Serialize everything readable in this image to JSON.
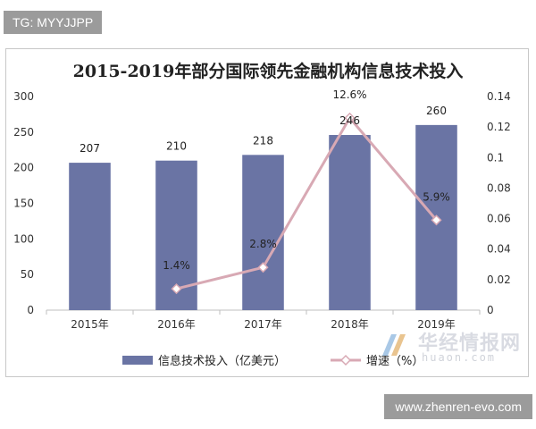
{
  "tags": {
    "top": "TG: MYYJJPP",
    "bottom": "www.zhenren-evo.com"
  },
  "watermark": {
    "cn": "华经情报网",
    "en": "huaon.com"
  },
  "chart_data": {
    "type": "bar",
    "title": "2015-2019年部分国际领先金融机构信息技术投入",
    "categories": [
      "2015年",
      "2016年",
      "2017年",
      "2018年",
      "2019年"
    ],
    "series": [
      {
        "name": "信息技术投入（亿美元）",
        "type": "bar",
        "axis": "left",
        "color": "#6a74a4",
        "values": [
          207,
          210,
          218,
          246,
          260
        ],
        "labels": [
          "207",
          "210",
          "218",
          "246",
          "260"
        ]
      },
      {
        "name": "增速（%）",
        "type": "line",
        "axis": "right",
        "color": "#d8a9b4",
        "values": [
          null,
          0.014,
          0.028,
          0.126,
          0.059
        ],
        "labels": [
          "",
          "1.4%",
          "2.8%",
          "12.6%",
          "5.9%"
        ]
      }
    ],
    "y_left": {
      "min": 0,
      "max": 300,
      "ticks": [
        0,
        50,
        100,
        150,
        200,
        250,
        300
      ],
      "tick_labels": [
        "0",
        "50",
        "100",
        "150",
        "200",
        "250",
        "300"
      ]
    },
    "y_right": {
      "min": 0,
      "max": 0.14,
      "ticks": [
        0,
        0.02,
        0.04,
        0.06,
        0.08,
        0.1,
        0.12,
        0.14
      ],
      "tick_labels": [
        "0",
        "0.02",
        "0.04",
        "0.06",
        "0.08",
        "0.1",
        "0.12",
        "0.14"
      ]
    },
    "grid": false,
    "legend": "bottom"
  }
}
